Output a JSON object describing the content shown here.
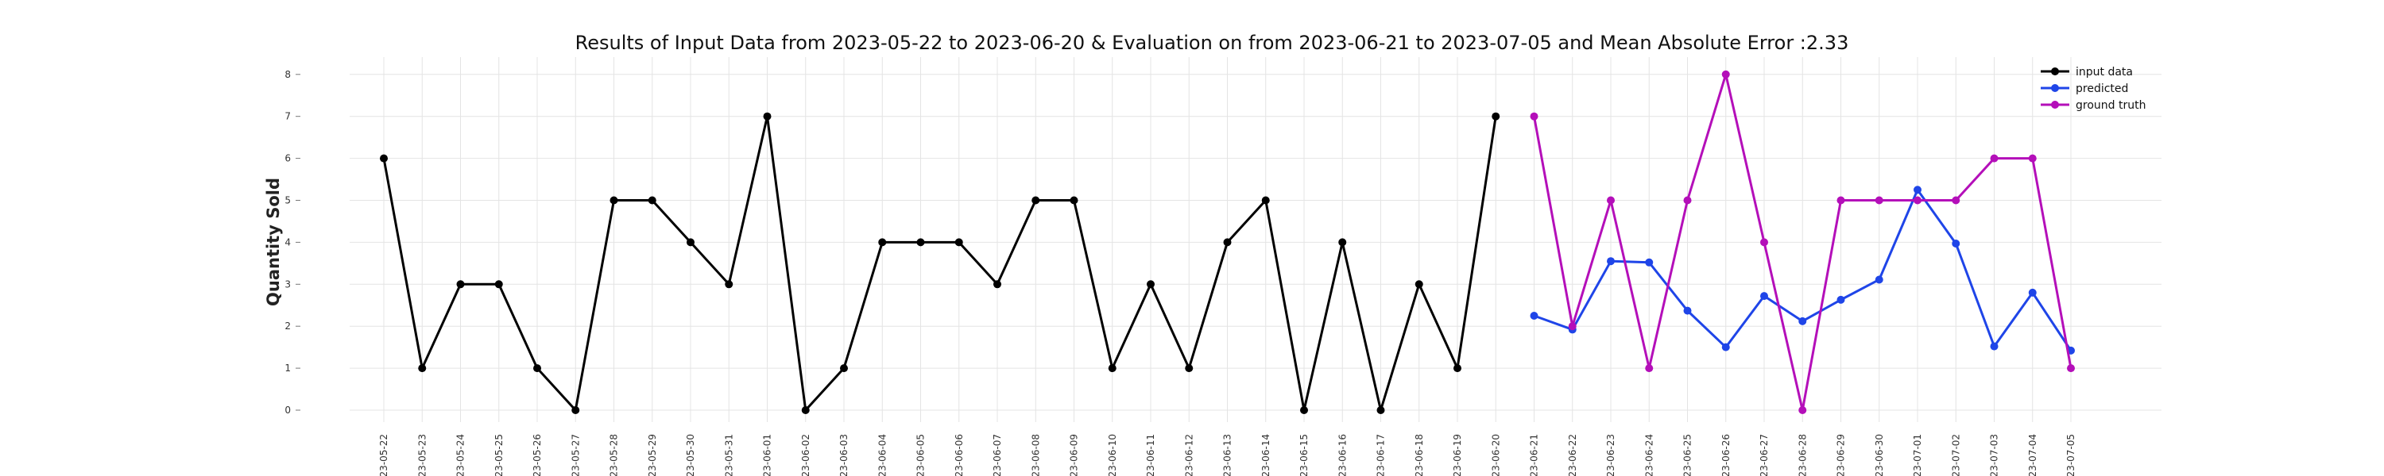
{
  "chart_data": {
    "type": "line",
    "title": "Results of Input Data from 2023-05-22 to 2023-06-20 & Evaluation on from 2023-06-21 to 2023-07-05 and Mean Absolute Error  :2.33",
    "xlabel": "",
    "ylabel": "Quantity Sold",
    "ylim": [
      0,
      8
    ],
    "yticks": [
      0,
      1,
      2,
      3,
      4,
      5,
      6,
      7,
      8
    ],
    "grid": true,
    "legend_position": "top-right",
    "categories": [
      "2023-05-22",
      "2023-05-23",
      "2023-05-24",
      "2023-05-25",
      "2023-05-26",
      "2023-05-27",
      "2023-05-28",
      "2023-05-29",
      "2023-05-30",
      "2023-05-31",
      "2023-06-01",
      "2023-06-02",
      "2023-06-03",
      "2023-06-04",
      "2023-06-05",
      "2023-06-06",
      "2023-06-07",
      "2023-06-08",
      "2023-06-09",
      "2023-06-10",
      "2023-06-11",
      "2023-06-12",
      "2023-06-13",
      "2023-06-14",
      "2023-06-15",
      "2023-06-16",
      "2023-06-17",
      "2023-06-18",
      "2023-06-19",
      "2023-06-20",
      "2023-06-21",
      "2023-06-22",
      "2023-06-23",
      "2023-06-24",
      "2023-06-25",
      "2023-06-26",
      "2023-06-27",
      "2023-06-28",
      "2023-06-29",
      "2023-06-30",
      "2023-07-01",
      "2023-07-02",
      "2023-07-03",
      "2023-07-04",
      "2023-07-05"
    ],
    "xtick_labels": [
      "-23-05-22",
      "-23-05-23",
      "-23-05-24",
      "-23-05-25",
      "-23-05-26",
      "-23-05-27",
      "-23-05-28",
      "-23-05-29",
      "-23-05-30",
      "-23-05-31",
      "-23-06-01",
      "-23-06-02",
      "-23-06-03",
      "-23-06-04",
      "-23-06-05",
      "-23-06-06",
      "-23-06-07",
      "-23-06-08",
      "-23-06-09",
      "-23-06-10",
      "-23-06-11",
      "-23-06-12",
      "-23-06-13",
      "-23-06-14",
      "-23-06-15",
      "-23-06-16",
      "-23-06-17",
      "-23-06-18",
      "-23-06-19",
      "-23-06-20",
      "-23-06-21",
      "-23-06-22",
      "-23-06-23",
      "-23-06-24",
      "-23-06-25",
      "-23-06-26",
      "-23-06-27",
      "-23-06-28",
      "-23-06-29",
      "-23-06-30",
      "-23-07-01",
      "-23-07-02",
      "-23-07-03",
      "-23-07-04",
      "-23-07-05"
    ],
    "series": [
      {
        "name": "input data",
        "color": "#000000",
        "x": [
          "2023-05-22",
          "2023-05-23",
          "2023-05-24",
          "2023-05-25",
          "2023-05-26",
          "2023-05-27",
          "2023-05-28",
          "2023-05-29",
          "2023-05-30",
          "2023-05-31",
          "2023-06-01",
          "2023-06-02",
          "2023-06-03",
          "2023-06-04",
          "2023-06-05",
          "2023-06-06",
          "2023-06-07",
          "2023-06-08",
          "2023-06-09",
          "2023-06-10",
          "2023-06-11",
          "2023-06-12",
          "2023-06-13",
          "2023-06-14",
          "2023-06-15",
          "2023-06-16",
          "2023-06-17",
          "2023-06-18",
          "2023-06-19",
          "2023-06-20"
        ],
        "values": [
          6,
          1,
          3,
          3,
          1,
          0,
          5,
          5,
          4,
          3,
          7,
          0,
          1,
          4,
          4,
          4,
          3,
          5,
          5,
          1,
          3,
          1,
          4,
          5,
          0,
          4,
          0,
          3,
          1,
          7
        ]
      },
      {
        "name": "predicted",
        "color": "#1f45e8",
        "x": [
          "2023-06-21",
          "2023-06-22",
          "2023-06-23",
          "2023-06-24",
          "2023-06-25",
          "2023-06-26",
          "2023-06-27",
          "2023-06-28",
          "2023-06-29",
          "2023-06-30",
          "2023-07-01",
          "2023-07-02",
          "2023-07-03",
          "2023-07-04",
          "2023-07-05"
        ],
        "values": [
          2.25,
          1.92,
          3.55,
          3.52,
          2.37,
          1.5,
          2.72,
          2.12,
          2.63,
          3.11,
          5.25,
          3.97,
          1.52,
          2.8,
          1.42
        ]
      },
      {
        "name": "ground truth",
        "color": "#b40fb9",
        "x": [
          "2023-06-21",
          "2023-06-22",
          "2023-06-23",
          "2023-06-24",
          "2023-06-25",
          "2023-06-26",
          "2023-06-27",
          "2023-06-28",
          "2023-06-29",
          "2023-06-30",
          "2023-07-01",
          "2023-07-02",
          "2023-07-03",
          "2023-07-04",
          "2023-07-05"
        ],
        "values": [
          7,
          2,
          5,
          1,
          5,
          8,
          4,
          0,
          5,
          5,
          5,
          5,
          6,
          6,
          1
        ]
      }
    ]
  }
}
